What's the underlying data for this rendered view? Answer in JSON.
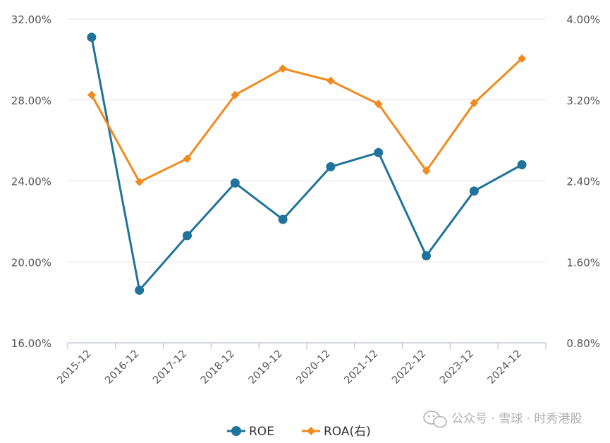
{
  "chart_data": {
    "type": "line",
    "categories": [
      "2015-12",
      "2016-12",
      "2017-12",
      "2018-12",
      "2019-12",
      "2020-12",
      "2021-12",
      "2022-12",
      "2023-12",
      "2024-12"
    ],
    "y_left": {
      "min": 16,
      "max": 32,
      "ticks": [
        16,
        20,
        24,
        28,
        32
      ],
      "tick_labels": [
        "16.00%",
        "20.00%",
        "24.00%",
        "28.00%",
        "32.00%"
      ]
    },
    "y_right": {
      "min": 0.8,
      "max": 4.0,
      "ticks": [
        0.8,
        1.6,
        2.4,
        3.2,
        4.0
      ],
      "tick_labels": [
        "0.80%",
        "1.60%",
        "2.40%",
        "3.20%",
        "4.00%"
      ]
    },
    "grid": true,
    "legend_position": "bottom-center",
    "series": [
      {
        "name": "ROE",
        "axis": "left",
        "color": "#20739a",
        "marker": "circle",
        "values": [
          31.1,
          18.6,
          21.3,
          23.9,
          22.1,
          24.7,
          25.4,
          20.3,
          23.5,
          24.8
        ]
      },
      {
        "name": "ROA(右)",
        "axis": "right",
        "color": "#f18a1f",
        "marker": "diamond",
        "values": [
          3.25,
          2.39,
          2.62,
          3.25,
          3.51,
          3.39,
          3.16,
          2.5,
          3.17,
          3.61
        ]
      }
    ]
  },
  "watermark": "公众号 · 雪球 · 时秀港股"
}
